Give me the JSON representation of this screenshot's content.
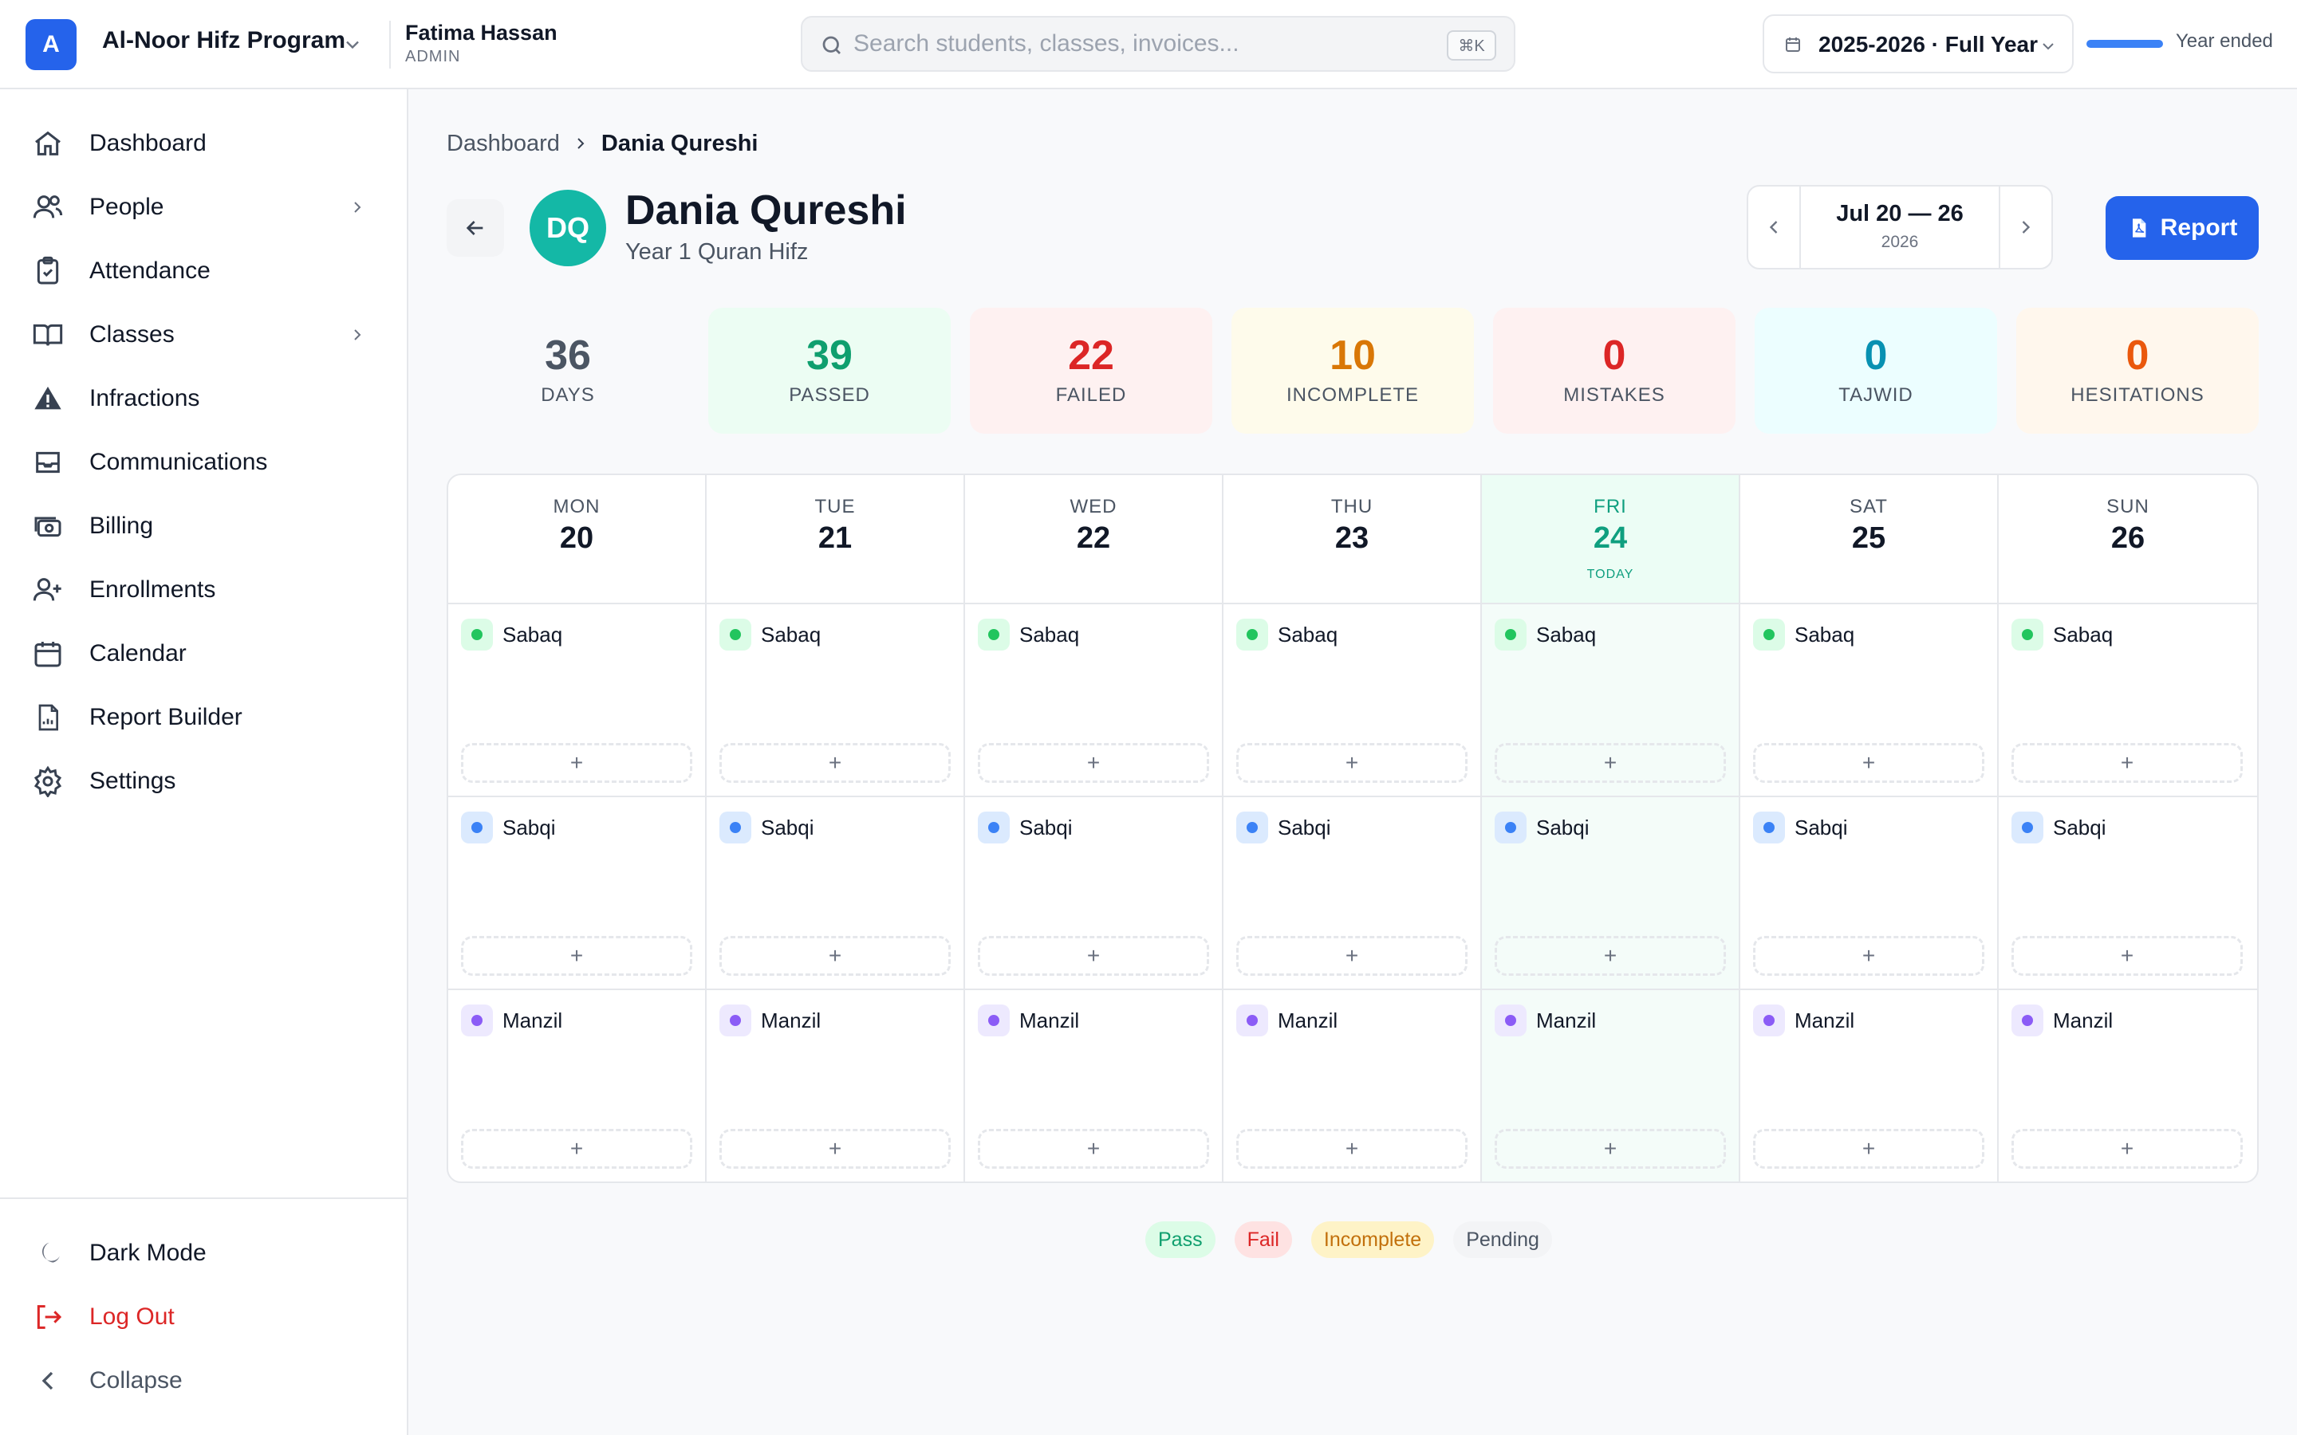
{
  "header": {
    "logo_letter": "A",
    "org_name": "Al-Noor Hifz Program",
    "user_name": "Fatima Hassan",
    "user_role": "ADMIN",
    "search_placeholder": "Search students, classes, invoices...",
    "search_value": "",
    "search_shortcut": "⌘K",
    "year_label": "2025-2026 · Full Year",
    "year_status": "Year ended",
    "year_progress": 1.0
  },
  "sidebar": {
    "items": [
      {
        "label": "Dashboard",
        "icon": "home-icon"
      },
      {
        "label": "People",
        "icon": "users-icon",
        "chevron": true
      },
      {
        "label": "Attendance",
        "icon": "clipboard-check-icon"
      },
      {
        "label": "Classes",
        "icon": "book-open-icon",
        "chevron": true
      },
      {
        "label": "Infractions",
        "icon": "warning-icon"
      },
      {
        "label": "Communications",
        "icon": "inbox-icon"
      },
      {
        "label": "Billing",
        "icon": "banknote-icon"
      },
      {
        "label": "Enrollments",
        "icon": "user-plus-icon"
      },
      {
        "label": "Calendar",
        "icon": "calendar-icon"
      },
      {
        "label": "Report Builder",
        "icon": "file-chart-icon"
      },
      {
        "label": "Settings",
        "icon": "gear-icon"
      }
    ],
    "dark_mode_label": "Dark Mode",
    "logout_label": "Log Out",
    "collapse_label": "Collapse"
  },
  "breadcrumb": {
    "root": "Dashboard",
    "current": "Dania Qureshi"
  },
  "student": {
    "initials": "DQ",
    "name": "Dania Qureshi",
    "class": "Year 1 Quran Hifz"
  },
  "week": {
    "range": "Jul 20 — 26",
    "year": "2026"
  },
  "report_button": "Report",
  "stats": [
    {
      "value": "36",
      "label": "DAYS",
      "color": "#4b5563",
      "bg": "#f8f9fb"
    },
    {
      "value": "39",
      "label": "PASSED",
      "color": "#0f9f6e",
      "bg": "#ecfdf3"
    },
    {
      "value": "22",
      "label": "FAILED",
      "color": "#dc2626",
      "bg": "#fef1f1"
    },
    {
      "value": "10",
      "label": "INCOMPLETE",
      "color": "#d97706",
      "bg": "#fefbeb"
    },
    {
      "value": "0",
      "label": "MISTAKES",
      "color": "#dc2626",
      "bg": "#fef1f1"
    },
    {
      "value": "0",
      "label": "TAJWID",
      "color": "#0891b2",
      "bg": "#ecfeff"
    },
    {
      "value": "0",
      "label": "HESITATIONS",
      "color": "#ea580c",
      "bg": "#fff7ed"
    }
  ],
  "days": [
    {
      "dow": "MON",
      "num": "20"
    },
    {
      "dow": "TUE",
      "num": "21"
    },
    {
      "dow": "WED",
      "num": "22"
    },
    {
      "dow": "THU",
      "num": "23"
    },
    {
      "dow": "FRI",
      "num": "24",
      "today": true
    },
    {
      "dow": "SAT",
      "num": "25"
    },
    {
      "dow": "SUN",
      "num": "26"
    }
  ],
  "today_tag": "TODAY",
  "slots": [
    {
      "label": "Sabaq",
      "dot": "#22c55e",
      "bg": "#dcfce7"
    },
    {
      "label": "Sabqi",
      "dot": "#3b82f6",
      "bg": "#dbeafe"
    },
    {
      "label": "Manzil",
      "dot": "#8b5cf6",
      "bg": "#ede9fe"
    }
  ],
  "add_symbol": "+",
  "legend": [
    {
      "label": "Pass",
      "color": "#0f9f6e",
      "bg": "#dcfce7"
    },
    {
      "label": "Fail",
      "color": "#dc2626",
      "bg": "#fee2e2"
    },
    {
      "label": "Incomplete",
      "color": "#c2700c",
      "bg": "#fef3c7"
    },
    {
      "label": "Pending",
      "color": "#4b5563",
      "bg": "#f3f4f6"
    }
  ],
  "colors": {
    "accent": "#2563eb",
    "teal": "#14b8a6",
    "danger": "#dc2626"
  }
}
